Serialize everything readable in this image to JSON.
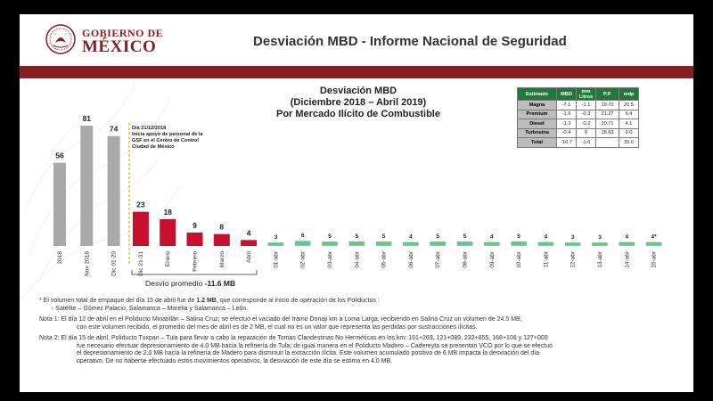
{
  "header": {
    "logo_line1": "GOBIERNO DE",
    "logo_line2": "MÉXICO",
    "title": "Desviación MBD - Informe Nacional de Seguridad"
  },
  "chart_title": {
    "line1": "Desviación MBD",
    "line2": "(Diciembre 2018 – Abril 2019)",
    "line3": "Por Mercado Ilícito de Combustible"
  },
  "annotation": {
    "line1": "Día 21/12/2018",
    "line2": "Inicia apoyo de personal de la",
    "line3": "GSF en el Centro de Control",
    "line4": "Ciudad de México"
  },
  "avg": {
    "prefix": "Desvío promedio ",
    "value": "-11.6 MB"
  },
  "colors": {
    "gray": "#a9a9a9",
    "red": "#c8102e",
    "green": "#5fc88a",
    "header_red": "#8a1c24",
    "table_green": "#1f7a3a"
  },
  "chart_data": {
    "type": "bar",
    "ylim": [
      0,
      90
    ],
    "grid": false,
    "categories": [
      "2018",
      "Nov 2018",
      "Dic 01-20",
      "Dic 21-31",
      "Enero",
      "Febrero",
      "Marzo",
      "Abril",
      "01-abr",
      "02-abr",
      "03-abr",
      "04-abr",
      "05-abr",
      "06-abr",
      "07-abr",
      "08-abr",
      "09-abr",
      "10-abr",
      "11-abr",
      "12-abr",
      "13-abr",
      "14-abr",
      "15-abr"
    ],
    "values": [
      56,
      81,
      74,
      23,
      18,
      9,
      8,
      4,
      3,
      6,
      5,
      5,
      5,
      4,
      5,
      5,
      4,
      5,
      4,
      3,
      3,
      4,
      4
    ],
    "value_labels": [
      "56",
      "81",
      "74",
      "23",
      "18",
      "9",
      "8",
      "4",
      "3",
      "6",
      "5",
      "5",
      "5",
      "4",
      "5",
      "5",
      "4",
      "5",
      "4",
      "3",
      "3",
      "4",
      "4*"
    ],
    "bar_colors": [
      "gray",
      "gray",
      "gray",
      "red",
      "red",
      "red",
      "red",
      "red",
      "green",
      "green",
      "green",
      "green",
      "green",
      "green",
      "green",
      "green",
      "green",
      "green",
      "green",
      "green",
      "green",
      "green",
      "green"
    ]
  },
  "table": {
    "headers": [
      "Estimado",
      "MBD",
      "mm Litros",
      "P.P.",
      "mdp"
    ],
    "rows": [
      [
        "Magna",
        "-7.1",
        "-1.1",
        "19.70",
        "22.5"
      ],
      [
        "Premium",
        "-1.9",
        "-0.3",
        "21.27",
        "6.4"
      ],
      [
        "Diesel",
        "-1.3",
        "-0.2",
        "20.71",
        "4.1"
      ],
      [
        "Turbosina",
        "-0.4",
        "0",
        "18.63",
        "0.0"
      ],
      [
        "Total",
        "-10.7",
        "-1.6",
        "",
        "33.0"
      ]
    ]
  },
  "notes": {
    "n0_line1_a": "El volumen total de empaque del día 15 de abril fue de ",
    "n0_line1_b": "1.2 MB",
    "n0_line1_c": ", que corresponde al inicio de operación de los Poliductos :",
    "n0_line2": "- Satélite – Gómez Palacio,  Salamanca – Morelia y Salamanca – León.",
    "n1_line1": "Nota 1:  El día 12 de abril en el Poliducto Minatitlán – Salina Cruz; se efectuó el vaciado del tramo Donaji km a Loma Larga, recibiendo en Salina Cruz un volumen de 24.5 MB;",
    "n1_line2": "con este volumen recibido, el promedio del mes de abril es de 2 MB, el cual no es un valor que representa las perdidas por sustracciones ilícitas.",
    "n2_line1": "Nota 2:  El día 15 de abril, Poliducto Tuxpan – Tula para llevar a cabo la reparación de Tomas Clandestinas No Herméticas en los km: 161+263, 121+089, 232+855, 168+106 y 127+000",
    "n2_line2": "fue necesario efectuar depresionamiento de 4.0 MB  hacia la refinería de Tula; de igual manera en el Poliducto Madero – Cadereyta se presentan VCO por lo que se efectuó",
    "n2_line3": "el  depresionamiento de 2.0 MB hacia la refinería de Madero para disminuir la extracción ilícita. Este volumen acumulado positivo de 6 MB impacta la desviación del día",
    "n2_line4": "operativo. De no haberse efectuado estos movimientos operativos, la desviación de este día se estima en 4.0 MB."
  }
}
